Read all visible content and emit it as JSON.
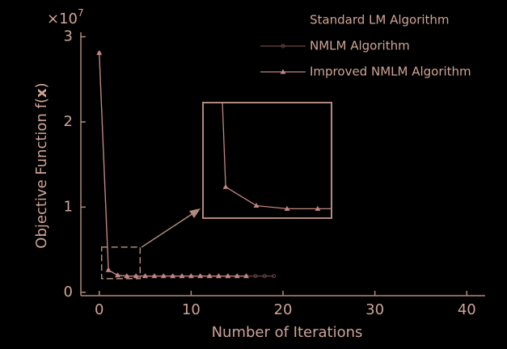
{
  "chart_data": {
    "type": "line",
    "y_multiplier": {
      "base": "×10",
      "exponent": "7"
    },
    "x_label": "Number of Iterations",
    "y_label": {
      "before": "Objective Function f(",
      "bold": "x",
      "after": ")"
    },
    "xlim": [
      -2,
      42
    ],
    "xticks": [
      0,
      10,
      20,
      30,
      40
    ],
    "ylim": [
      -0.04,
      3.1
    ],
    "yticks": [
      0,
      1,
      2,
      3
    ],
    "legend": "top-right",
    "series": [
      {
        "name": "Standard LM Algorithm",
        "color": "#000000",
        "marker": "none",
        "x": [],
        "values": []
      },
      {
        "name": "NMLM Algorithm",
        "color": "#6e4444",
        "marker": "circle",
        "x": [
          0,
          1,
          2,
          3,
          4,
          5,
          6,
          7,
          8,
          9,
          10,
          11,
          12,
          13,
          14,
          15,
          16,
          17,
          18,
          19
        ],
        "values": [
          2.81,
          0.26,
          0.2,
          0.19,
          0.19,
          0.19,
          0.19,
          0.19,
          0.19,
          0.19,
          0.19,
          0.19,
          0.19,
          0.19,
          0.19,
          0.19,
          0.19,
          0.19,
          0.19,
          0.19
        ]
      },
      {
        "name": "Improved NMLM Algorithm",
        "color": "#c08585",
        "marker": "triangle",
        "x": [
          0,
          1,
          2,
          3,
          4,
          5,
          6,
          7,
          8,
          9,
          10,
          11,
          12,
          13,
          14,
          15,
          16
        ],
        "values": [
          2.81,
          0.26,
          0.2,
          0.19,
          0.19,
          0.19,
          0.19,
          0.19,
          0.19,
          0.19,
          0.19,
          0.19,
          0.19,
          0.19,
          0.19,
          0.19,
          0.19
        ]
      }
    ],
    "inset": {
      "xlim": [
        0.26,
        4.45
      ],
      "ylim": [
        0.16,
        0.53
      ]
    }
  }
}
